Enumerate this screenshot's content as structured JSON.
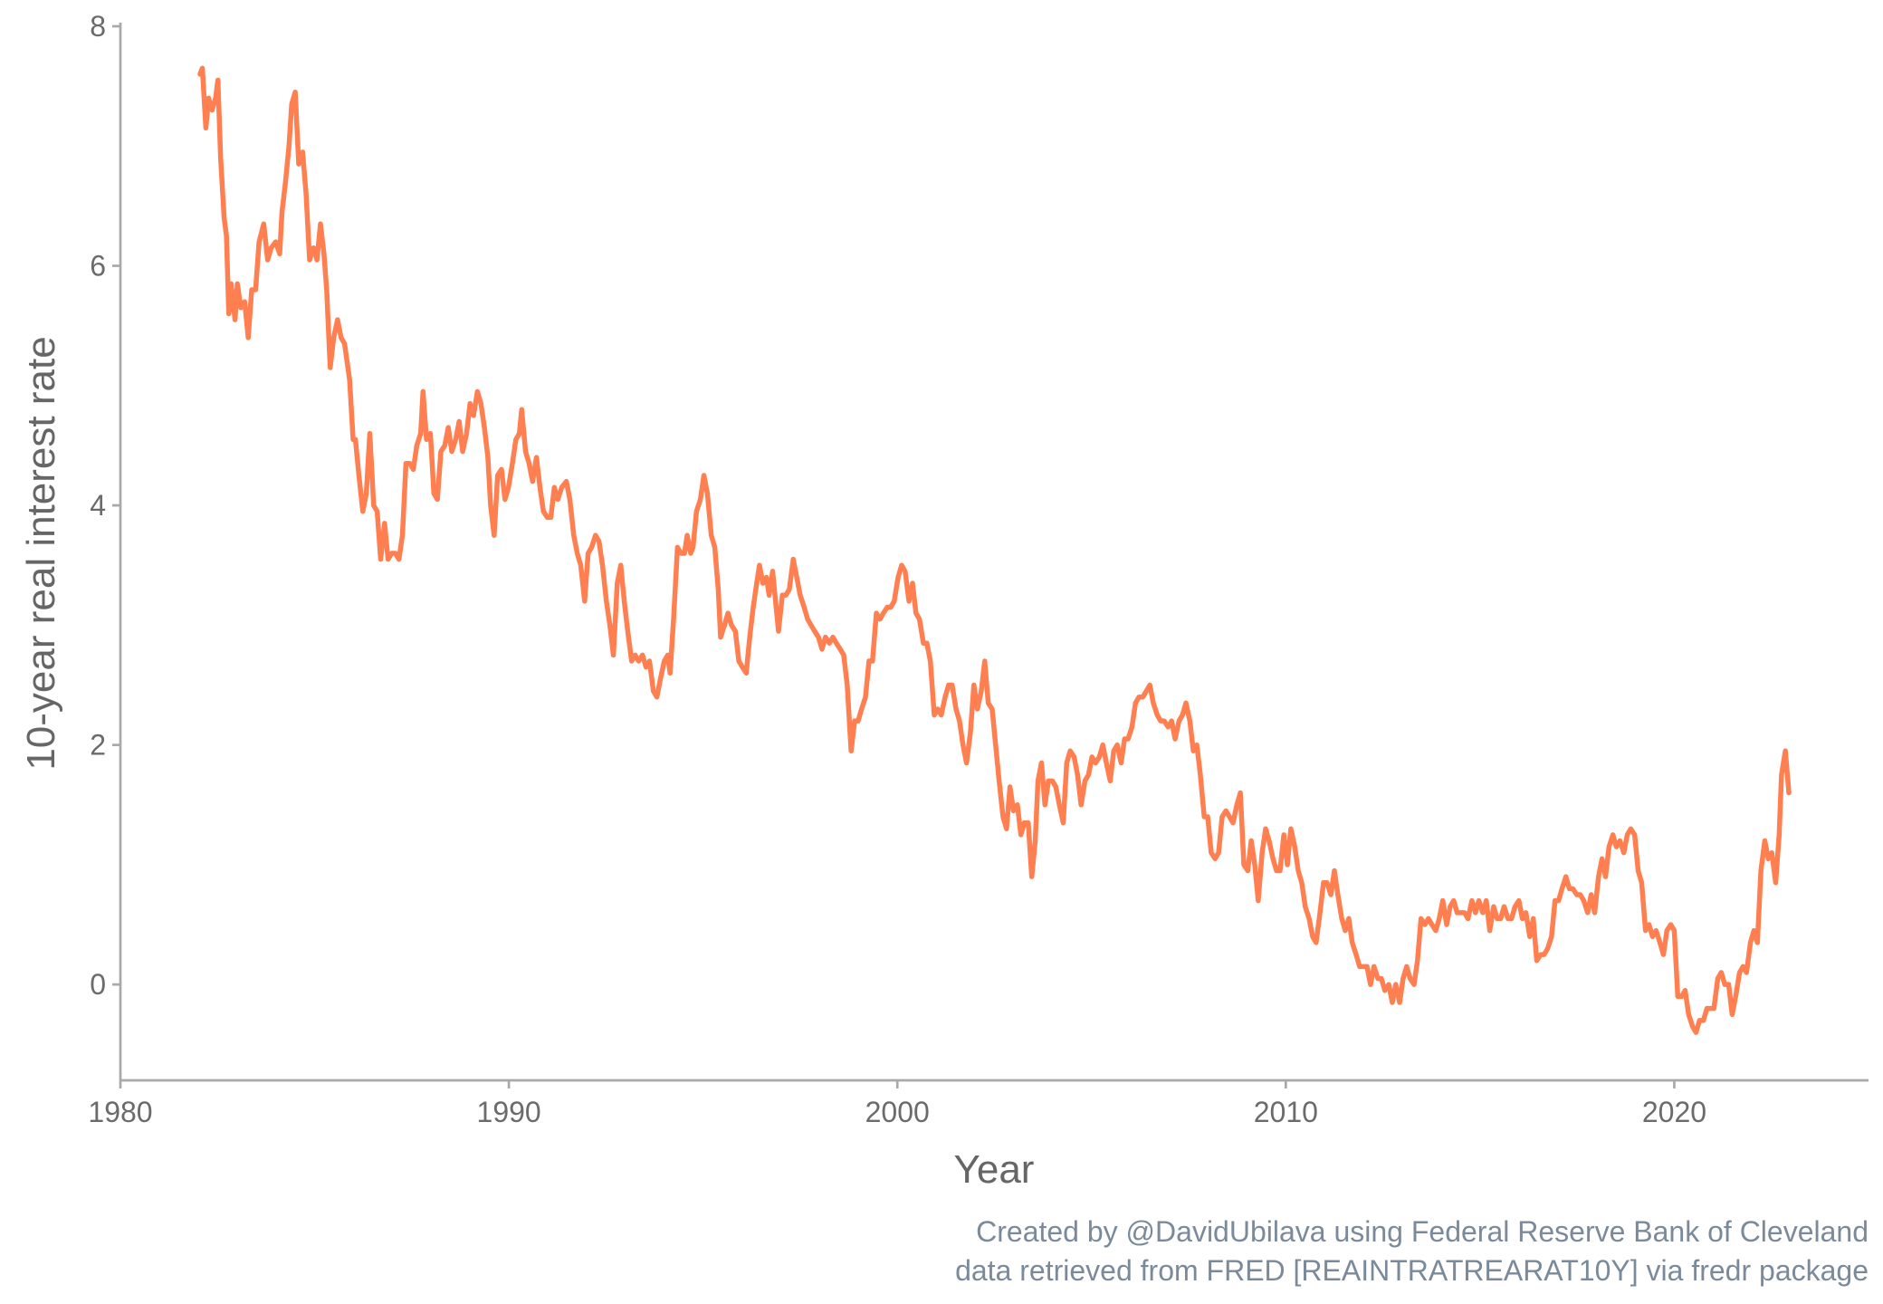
{
  "chart_data": {
    "type": "line",
    "x_label": "Year",
    "y_label": "10-year real interest rate",
    "caption": [
      "Created by @DavidUbilava using Federal Reserve Bank of Cleveland",
      "data retrieved from FRED [REAINTRATREARAT10Y] via fredr package"
    ],
    "color": "#ff7f50",
    "xlim": [
      1980,
      2025
    ],
    "xticks": [
      1980,
      1990,
      2000,
      2010,
      2020
    ],
    "ylim": [
      -0.8,
      8
    ],
    "yticks": [
      0,
      2,
      4,
      6,
      8
    ],
    "x": [
      1982.05,
      1982.11,
      1982.2,
      1982.27,
      1982.36,
      1982.45,
      1982.51,
      1982.58,
      1982.67,
      1982.73,
      1982.79,
      1982.85,
      1982.95,
      1983.01,
      1983.1,
      1983.2,
      1983.29,
      1983.38,
      1983.48,
      1983.57,
      1983.69,
      1983.79,
      1983.88,
      1984.0,
      1984.1,
      1984.16,
      1984.25,
      1984.34,
      1984.41,
      1984.5,
      1984.59,
      1984.69,
      1984.78,
      1984.87,
      1984.97,
      1985.06,
      1985.15,
      1985.24,
      1985.31,
      1985.4,
      1985.49,
      1985.59,
      1985.68,
      1985.77,
      1985.9,
      1985.99,
      1986.05,
      1986.14,
      1986.24,
      1986.33,
      1986.42,
      1986.52,
      1986.61,
      1986.7,
      1986.8,
      1986.89,
      1986.98,
      1987.08,
      1987.17,
      1987.26,
      1987.35,
      1987.45,
      1987.54,
      1987.63,
      1987.73,
      1987.79,
      1987.88,
      1987.98,
      1988.07,
      1988.16,
      1988.25,
      1988.35,
      1988.44,
      1988.53,
      1988.63,
      1988.72,
      1988.81,
      1988.91,
      1989.0,
      1989.09,
      1989.19,
      1989.28,
      1989.37,
      1989.46,
      1989.53,
      1989.62,
      1989.71,
      1989.81,
      1989.9,
      1989.99,
      1990.09,
      1990.18,
      1990.27,
      1990.33,
      1990.43,
      1990.52,
      1990.61,
      1990.71,
      1990.8,
      1990.89,
      1990.99,
      1991.08,
      1991.17,
      1991.26,
      1991.36,
      1991.48,
      1991.57,
      1991.67,
      1991.76,
      1991.85,
      1991.95,
      1992.04,
      1992.13,
      1992.23,
      1992.32,
      1992.41,
      1992.51,
      1992.6,
      1992.69,
      1992.79,
      1992.88,
      1992.97,
      1993.06,
      1993.16,
      1993.25,
      1993.34,
      1993.44,
      1993.53,
      1993.62,
      1993.72,
      1993.81,
      1993.9,
      1994.0,
      1994.09,
      1994.15,
      1994.24,
      1994.34,
      1994.43,
      1994.52,
      1994.59,
      1994.68,
      1994.74,
      1994.83,
      1994.93,
      1995.02,
      1995.11,
      1995.21,
      1995.3,
      1995.39,
      1995.45,
      1995.55,
      1995.64,
      1995.73,
      1995.83,
      1995.92,
      1996.01,
      1996.11,
      1996.2,
      1996.29,
      1996.38,
      1996.45,
      1996.54,
      1996.63,
      1996.7,
      1996.79,
      1996.88,
      1996.94,
      1997.04,
      1997.13,
      1997.22,
      1997.32,
      1997.41,
      1997.5,
      1997.6,
      1997.69,
      1997.78,
      1997.87,
      1997.97,
      1998.06,
      1998.15,
      1998.25,
      1998.34,
      1998.43,
      1998.53,
      1998.62,
      1998.71,
      1998.81,
      1998.9,
      1998.99,
      1999.08,
      1999.18,
      1999.27,
      1999.36,
      1999.46,
      1999.55,
      1999.64,
      1999.74,
      1999.83,
      1999.92,
      2000.02,
      2000.11,
      2000.2,
      2000.3,
      2000.39,
      2000.48,
      2000.57,
      2000.67,
      2000.76,
      2000.85,
      2000.95,
      2001.04,
      2001.13,
      2001.23,
      2001.32,
      2001.41,
      2001.51,
      2001.6,
      2001.69,
      2001.78,
      2001.88,
      2001.97,
      2002.06,
      2002.16,
      2002.25,
      2002.34,
      2002.44,
      2002.53,
      2002.62,
      2002.72,
      2002.81,
      2002.9,
      2002.99,
      2003.09,
      2003.18,
      2003.27,
      2003.37,
      2003.46,
      2003.55,
      2003.62,
      2003.71,
      2003.8,
      2003.89,
      2003.99,
      2004.08,
      2004.17,
      2004.27,
      2004.36,
      2004.45,
      2004.55,
      2004.64,
      2004.73,
      2004.83,
      2004.92,
      2005.01,
      2005.1,
      2005.2,
      2005.29,
      2005.38,
      2005.48,
      2005.57,
      2005.66,
      2005.76,
      2005.85,
      2005.94,
      2006.04,
      2006.13,
      2006.22,
      2006.32,
      2006.41,
      2006.5,
      2006.59,
      2006.69,
      2006.78,
      2006.87,
      2006.97,
      2007.06,
      2007.15,
      2007.25,
      2007.34,
      2007.43,
      2007.53,
      2007.62,
      2007.71,
      2007.8,
      2007.9,
      2007.99,
      2008.08,
      2008.18,
      2008.27,
      2008.36,
      2008.46,
      2008.55,
      2008.64,
      2008.74,
      2008.83,
      2008.92,
      2009.02,
      2009.11,
      2009.2,
      2009.29,
      2009.39,
      2009.48,
      2009.57,
      2009.67,
      2009.76,
      2009.85,
      2009.95,
      2010.04,
      2010.13,
      2010.23,
      2010.32,
      2010.41,
      2010.5,
      2010.6,
      2010.69,
      2010.78,
      2010.88,
      2010.97,
      2011.06,
      2011.16,
      2011.25,
      2011.34,
      2011.44,
      2011.53,
      2011.62,
      2011.71,
      2011.81,
      2011.9,
      2011.99,
      2012.09,
      2012.18,
      2012.27,
      2012.37,
      2012.46,
      2012.55,
      2012.65,
      2012.74,
      2012.83,
      2012.93,
      2013.02,
      2013.11,
      2013.2,
      2013.3,
      2013.39,
      2013.48,
      2013.58,
      2013.67,
      2013.76,
      2013.86,
      2013.95,
      2014.04,
      2014.14,
      2014.23,
      2014.32,
      2014.41,
      2014.51,
      2014.6,
      2014.69,
      2014.79,
      2014.88,
      2014.97,
      2015.07,
      2015.16,
      2015.25,
      2015.35,
      2015.44,
      2015.53,
      2015.62,
      2015.72,
      2015.81,
      2015.9,
      2016.0,
      2016.09,
      2016.18,
      2016.28,
      2016.37,
      2016.46,
      2016.56,
      2016.65,
      2016.74,
      2016.84,
      2016.93,
      2017.02,
      2017.11,
      2017.21,
      2017.3,
      2017.39,
      2017.49,
      2017.58,
      2017.67,
      2017.77,
      2017.86,
      2017.95,
      2018.05,
      2018.14,
      2018.23,
      2018.32,
      2018.42,
      2018.51,
      2018.6,
      2018.7,
      2018.79,
      2018.88,
      2018.98,
      2019.07,
      2019.16,
      2019.26,
      2019.35,
      2019.44,
      2019.53,
      2019.63,
      2019.72,
      2019.81,
      2019.91,
      2020.0,
      2020.09,
      2020.19,
      2020.28,
      2020.37,
      2020.47,
      2020.56,
      2020.65,
      2020.75,
      2020.84,
      2020.93,
      2021.02,
      2021.12,
      2021.21,
      2021.3,
      2021.4,
      2021.49,
      2021.58,
      2021.68,
      2021.77,
      2021.86,
      2021.96,
      2022.05,
      2022.14,
      2022.23,
      2022.33,
      2022.42,
      2022.51,
      2022.61,
      2022.7,
      2022.76,
      2022.86,
      2022.95
    ],
    "values": [
      7.6,
      7.65,
      7.15,
      7.4,
      7.3,
      7.4,
      7.55,
      6.9,
      6.4,
      6.25,
      5.6,
      5.85,
      5.55,
      5.85,
      5.65,
      5.7,
      5.4,
      5.8,
      5.8,
      6.2,
      6.35,
      6.05,
      6.15,
      6.2,
      6.1,
      6.45,
      6.7,
      7.0,
      7.35,
      7.45,
      6.85,
      6.95,
      6.6,
      6.05,
      6.15,
      6.05,
      6.35,
      6.1,
      5.8,
      5.15,
      5.4,
      5.55,
      5.4,
      5.35,
      5.05,
      4.55,
      4.55,
      4.25,
      3.95,
      4.1,
      4.6,
      4.0,
      3.95,
      3.55,
      3.85,
      3.55,
      3.6,
      3.6,
      3.55,
      3.75,
      4.35,
      4.35,
      4.3,
      4.5,
      4.6,
      4.95,
      4.55,
      4.6,
      4.1,
      4.05,
      4.45,
      4.5,
      4.65,
      4.45,
      4.55,
      4.7,
      4.45,
      4.6,
      4.85,
      4.75,
      4.95,
      4.85,
      4.65,
      4.4,
      4.0,
      3.75,
      4.25,
      4.3,
      4.05,
      4.15,
      4.35,
      4.55,
      4.6,
      4.8,
      4.45,
      4.35,
      4.2,
      4.4,
      4.15,
      3.95,
      3.9,
      3.9,
      4.15,
      4.05,
      4.15,
      4.2,
      4.05,
      3.75,
      3.6,
      3.5,
      3.2,
      3.6,
      3.65,
      3.75,
      3.7,
      3.5,
      3.2,
      3.0,
      2.75,
      3.35,
      3.5,
      3.2,
      2.95,
      2.7,
      2.75,
      2.7,
      2.75,
      2.65,
      2.7,
      2.45,
      2.4,
      2.55,
      2.7,
      2.75,
      2.6,
      3.05,
      3.65,
      3.6,
      3.6,
      3.75,
      3.6,
      3.65,
      3.95,
      4.05,
      4.25,
      4.1,
      3.75,
      3.65,
      3.3,
      2.9,
      3.0,
      3.1,
      3.0,
      2.95,
      2.7,
      2.65,
      2.6,
      2.9,
      3.15,
      3.35,
      3.5,
      3.35,
      3.4,
      3.25,
      3.45,
      3.15,
      2.95,
      3.25,
      3.25,
      3.3,
      3.55,
      3.4,
      3.25,
      3.15,
      3.05,
      3.0,
      2.95,
      2.9,
      2.8,
      2.9,
      2.85,
      2.9,
      2.85,
      2.8,
      2.75,
      2.5,
      1.95,
      2.2,
      2.2,
      2.3,
      2.4,
      2.7,
      2.7,
      3.1,
      3.05,
      3.1,
      3.15,
      3.15,
      3.2,
      3.4,
      3.5,
      3.45,
      3.2,
      3.35,
      3.1,
      3.05,
      2.85,
      2.85,
      2.7,
      2.25,
      2.3,
      2.25,
      2.4,
      2.5,
      2.5,
      2.3,
      2.2,
      2.0,
      1.85,
      2.1,
      2.5,
      2.3,
      2.45,
      2.7,
      2.35,
      2.3,
      2.0,
      1.7,
      1.4,
      1.3,
      1.65,
      1.45,
      1.5,
      1.25,
      1.35,
      1.35,
      0.9,
      1.2,
      1.7,
      1.85,
      1.5,
      1.7,
      1.7,
      1.65,
      1.5,
      1.35,
      1.85,
      1.95,
      1.9,
      1.75,
      1.5,
      1.7,
      1.75,
      1.9,
      1.85,
      1.9,
      2.0,
      1.85,
      1.7,
      1.95,
      2.0,
      1.85,
      2.05,
      2.05,
      2.15,
      2.35,
      2.4,
      2.4,
      2.45,
      2.5,
      2.35,
      2.25,
      2.2,
      2.2,
      2.15,
      2.2,
      2.05,
      2.2,
      2.25,
      2.35,
      2.2,
      1.95,
      2.0,
      1.75,
      1.4,
      1.4,
      1.1,
      1.05,
      1.1,
      1.4,
      1.45,
      1.4,
      1.35,
      1.5,
      1.6,
      1.0,
      0.95,
      1.2,
      1.0,
      0.7,
      1.1,
      1.3,
      1.2,
      1.05,
      0.95,
      0.95,
      1.25,
      1.0,
      1.3,
      1.15,
      0.95,
      0.85,
      0.65,
      0.55,
      0.4,
      0.35,
      0.6,
      0.85,
      0.85,
      0.75,
      0.95,
      0.75,
      0.55,
      0.45,
      0.55,
      0.35,
      0.25,
      0.15,
      0.15,
      0.15,
      0.0,
      0.15,
      0.05,
      0.05,
      -0.05,
      0.0,
      -0.15,
      0.0,
      -0.15,
      0.05,
      0.15,
      0.05,
      0.0,
      0.2,
      0.55,
      0.5,
      0.55,
      0.5,
      0.45,
      0.55,
      0.7,
      0.5,
      0.65,
      0.7,
      0.6,
      0.6,
      0.6,
      0.55,
      0.7,
      0.6,
      0.7,
      0.6,
      0.7,
      0.45,
      0.65,
      0.55,
      0.55,
      0.65,
      0.55,
      0.55,
      0.65,
      0.7,
      0.55,
      0.6,
      0.4,
      0.55,
      0.2,
      0.25,
      0.25,
      0.3,
      0.4,
      0.7,
      0.7,
      0.8,
      0.9,
      0.8,
      0.8,
      0.75,
      0.75,
      0.7,
      0.6,
      0.75,
      0.6,
      0.9,
      1.05,
      0.9,
      1.15,
      1.25,
      1.15,
      1.2,
      1.1,
      1.25,
      1.3,
      1.25,
      0.95,
      0.85,
      0.45,
      0.5,
      0.4,
      0.45,
      0.35,
      0.25,
      0.45,
      0.5,
      0.45,
      -0.1,
      -0.1,
      -0.05,
      -0.25,
      -0.35,
      -0.4,
      -0.3,
      -0.3,
      -0.2,
      -0.2,
      -0.2,
      0.05,
      0.1,
      0.0,
      0.0,
      -0.25,
      -0.1,
      0.1,
      0.15,
      0.1,
      0.35,
      0.45,
      0.35,
      0.95,
      1.2,
      1.05,
      1.1,
      0.85,
      1.25,
      1.75,
      1.95,
      1.6
    ]
  }
}
